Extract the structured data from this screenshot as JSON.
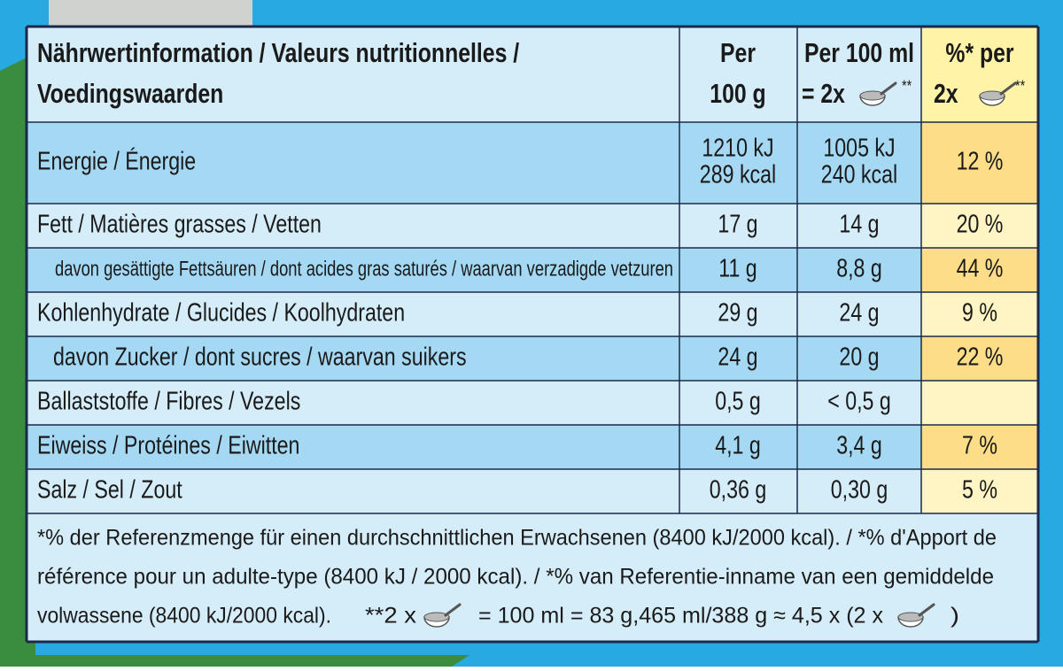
{
  "header": {
    "nutrient": [
      "Nährwertinformation / Valeurs nutritionnelles /",
      "Voedingswaarden"
    ],
    "per_100g": [
      "Per",
      "100 g"
    ],
    "per_100ml": [
      "Per 100 ml",
      "= 2x",
      "**"
    ],
    "percent": [
      "%* per",
      "2x",
      "**"
    ]
  },
  "rows": [
    {
      "name": "Energie / Énergie",
      "per_100g": [
        "1210 kJ",
        "289 kcal"
      ],
      "per_100ml": [
        "1005 kJ",
        "240 kcal"
      ],
      "percent": "12 %"
    },
    {
      "name": "Fett / Matières grasses / Vetten",
      "per_100g": "17 g",
      "per_100ml": "14 g",
      "percent": "20 %"
    },
    {
      "name": "davon gesättigte Fettsäuren / dont acides gras saturés / waarvan verzadigde vetzuren",
      "per_100g": "11 g",
      "per_100ml": "8,8 g",
      "percent": "44 %"
    },
    {
      "name": "Kohlenhydrate / Glucides / Koolhydraten",
      "per_100g": "29 g",
      "per_100ml": "24 g",
      "percent": "9 %"
    },
    {
      "name": "davon Zucker / dont sucres / waarvan suikers",
      "per_100g": "24 g",
      "per_100ml": "20 g",
      "percent": "22 %"
    },
    {
      "name": "Ballaststoffe / Fibres / Vezels",
      "per_100g": "0,5 g",
      "per_100ml": "< 0,5 g"
    },
    {
      "name": "Eiweiss / Protéines / Eiwitten",
      "per_100g": "4,1 g",
      "per_100ml": "3,4 g",
      "percent": "7 %"
    },
    {
      "name": "Salz / Sel / Zout",
      "per_100g": "0,36 g",
      "per_100ml": "0,30 g",
      "percent": "5 %"
    }
  ],
  "footnote": [
    "*% der Referenzmenge für einen durchschnittlichen Erwachsenen (8400 kJ/2000 kcal). / *% d'Apport de",
    "référence pour un adulte-type (8400 kJ / 2000 kcal). / *% van Referentie-inname van een gemiddelde",
    "volwassene (8400 kJ/2000 kcal).",
    "**2 x",
    "= 100 ml = 83 g,465 ml/388 g ≈ 4,5 x (2 x",
    ")"
  ]
}
